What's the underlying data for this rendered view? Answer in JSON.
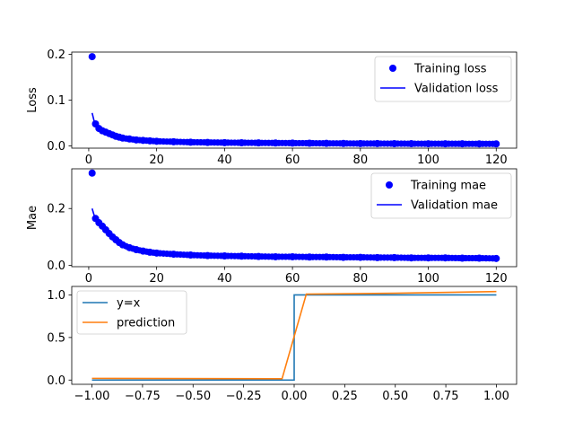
{
  "colors": {
    "training": "#0000ff",
    "validation": "#0000ff",
    "identity": "#1f77b4",
    "prediction": "#ff7f0e",
    "axes": "#000000"
  },
  "chart_data": [
    {
      "type": "line",
      "ylabel": "Loss",
      "xlim": [
        -5,
        126
      ],
      "ylim": [
        -0.005,
        0.205
      ],
      "xticks": [
        0,
        20,
        40,
        60,
        80,
        100,
        120
      ],
      "yticks": [
        0.0,
        0.1,
        0.2
      ],
      "ytick_labels": [
        "0.0",
        "0.1",
        "0.2"
      ],
      "legend": {
        "placement": "upper-right",
        "entries": [
          "Training loss",
          "Validation loss"
        ]
      },
      "series": [
        {
          "name": "Training loss",
          "style": "markers",
          "x": [
            1,
            2,
            3,
            4,
            5,
            6,
            7,
            8,
            9,
            10,
            12,
            14,
            16,
            18,
            20,
            25,
            30,
            35,
            40,
            45,
            50,
            55,
            60,
            65,
            70,
            75,
            80,
            85,
            90,
            95,
            100,
            105,
            110,
            115,
            120
          ],
          "values": [
            0.195,
            0.048,
            0.038,
            0.033,
            0.03,
            0.027,
            0.024,
            0.021,
            0.019,
            0.017,
            0.015,
            0.013,
            0.012,
            0.011,
            0.01,
            0.009,
            0.008,
            0.0075,
            0.007,
            0.0068,
            0.0065,
            0.0062,
            0.006,
            0.0058,
            0.0055,
            0.0053,
            0.005,
            0.005,
            0.0048,
            0.0047,
            0.0046,
            0.0045,
            0.0045,
            0.0044,
            0.0043
          ]
        },
        {
          "name": "Validation loss",
          "style": "line",
          "x": [
            1,
            2,
            3,
            4,
            5,
            6,
            7,
            8,
            9,
            10,
            12,
            14,
            16,
            18,
            20,
            25,
            30,
            35,
            40,
            45,
            50,
            55,
            60,
            65,
            70,
            75,
            80,
            85,
            90,
            95,
            100,
            105,
            110,
            115,
            120
          ],
          "values": [
            0.072,
            0.042,
            0.035,
            0.031,
            0.028,
            0.025,
            0.022,
            0.02,
            0.018,
            0.016,
            0.014,
            0.012,
            0.011,
            0.01,
            0.009,
            0.0085,
            0.008,
            0.0075,
            0.007,
            0.0068,
            0.0065,
            0.0062,
            0.006,
            0.0058,
            0.0055,
            0.0053,
            0.005,
            0.005,
            0.0048,
            0.0047,
            0.0046,
            0.0045,
            0.0045,
            0.0044,
            0.0043
          ]
        }
      ]
    },
    {
      "type": "line",
      "ylabel": "Mae",
      "xlim": [
        -5,
        126
      ],
      "ylim": [
        -0.005,
        0.34
      ],
      "xticks": [
        0,
        20,
        40,
        60,
        80,
        100,
        120
      ],
      "yticks": [
        0.0,
        0.2
      ],
      "ytick_labels": [
        "0.0",
        "0.2"
      ],
      "legend": {
        "placement": "upper-right",
        "entries": [
          "Training mae",
          "Validation mae"
        ]
      },
      "series": [
        {
          "name": "Training mae",
          "style": "markers",
          "x": [
            1,
            2,
            3,
            4,
            5,
            6,
            7,
            8,
            9,
            10,
            12,
            14,
            16,
            18,
            20,
            25,
            30,
            35,
            40,
            45,
            50,
            55,
            60,
            65,
            70,
            75,
            80,
            85,
            90,
            95,
            100,
            105,
            110,
            115,
            120
          ],
          "values": [
            0.325,
            0.165,
            0.15,
            0.138,
            0.125,
            0.112,
            0.1,
            0.09,
            0.08,
            0.072,
            0.062,
            0.055,
            0.05,
            0.046,
            0.043,
            0.039,
            0.036,
            0.034,
            0.033,
            0.032,
            0.031,
            0.03,
            0.03,
            0.029,
            0.029,
            0.028,
            0.028,
            0.027,
            0.027,
            0.026,
            0.026,
            0.026,
            0.025,
            0.025,
            0.024
          ]
        },
        {
          "name": "Validation mae",
          "style": "line",
          "x": [
            1,
            2,
            3,
            4,
            5,
            6,
            7,
            8,
            9,
            10,
            12,
            14,
            16,
            18,
            20,
            25,
            30,
            35,
            40,
            45,
            50,
            55,
            60,
            65,
            70,
            75,
            80,
            85,
            90,
            95,
            100,
            105,
            110,
            115,
            120
          ],
          "values": [
            0.2,
            0.16,
            0.145,
            0.133,
            0.12,
            0.108,
            0.097,
            0.087,
            0.078,
            0.07,
            0.06,
            0.053,
            0.048,
            0.045,
            0.042,
            0.038,
            0.035,
            0.033,
            0.032,
            0.031,
            0.03,
            0.03,
            0.029,
            0.029,
            0.028,
            0.028,
            0.027,
            0.027,
            0.026,
            0.026,
            0.026,
            0.025,
            0.025,
            0.025,
            0.024
          ]
        }
      ]
    },
    {
      "type": "line",
      "xlim": [
        -1.1,
        1.1
      ],
      "ylim": [
        -0.05,
        1.1
      ],
      "xticks": [
        -1.0,
        -0.75,
        -0.5,
        -0.25,
        0.0,
        0.25,
        0.5,
        0.75,
        1.0
      ],
      "xtick_labels": [
        "−1.00",
        "−0.75",
        "−0.50",
        "−0.25",
        "0.00",
        "0.25",
        "0.50",
        "0.75",
        "1.00"
      ],
      "yticks": [
        0.0,
        0.5,
        1.0
      ],
      "ytick_labels": [
        "0.0",
        "0.5",
        "1.0"
      ],
      "legend": {
        "placement": "upper-left",
        "entries": [
          "y=x",
          "prediction"
        ]
      },
      "series": [
        {
          "name": "y=x",
          "style": "line",
          "x": [
            -1.0,
            0.0,
            0.0,
            1.0
          ],
          "values": [
            0.0,
            0.0,
            1.0,
            1.0
          ]
        },
        {
          "name": "prediction",
          "style": "line",
          "x": [
            -1.0,
            -0.06,
            0.06,
            0.5,
            1.0
          ],
          "values": [
            0.02,
            0.015,
            1.01,
            1.02,
            1.04
          ]
        }
      ]
    }
  ]
}
